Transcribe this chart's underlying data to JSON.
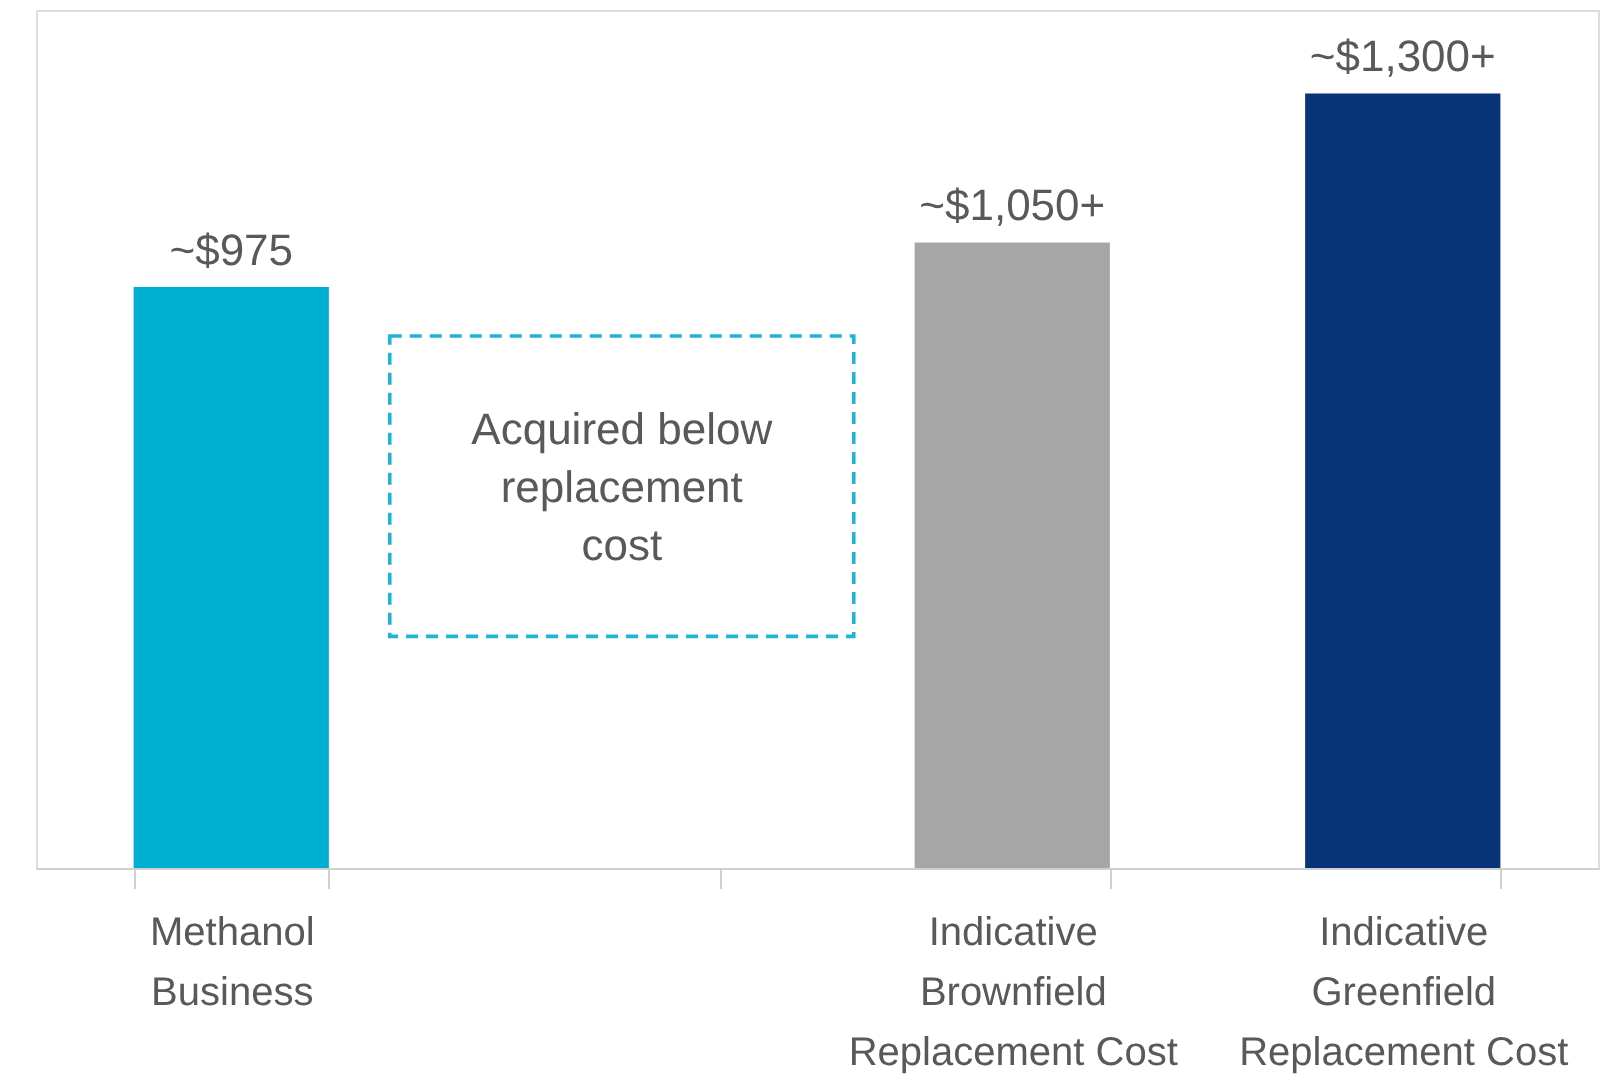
{
  "chart_data": {
    "type": "bar",
    "categories": [
      "Methanol Business",
      null,
      "Indicative Brownfield Replacement Cost",
      "Indicative Greenfield Replacement Cost"
    ],
    "values": [
      975,
      null,
      1050,
      1300
    ],
    "value_labels": [
      "~$975",
      null,
      "~$1,050+",
      "~$1,300+"
    ],
    "colors": [
      "#00b0d2",
      "#a6a6a6",
      "#a6a6a6",
      "#073479"
    ],
    "ylim": [
      0,
      1440
    ],
    "annotations": [
      "Acquired below replacement cost"
    ],
    "grid": false
  }
}
